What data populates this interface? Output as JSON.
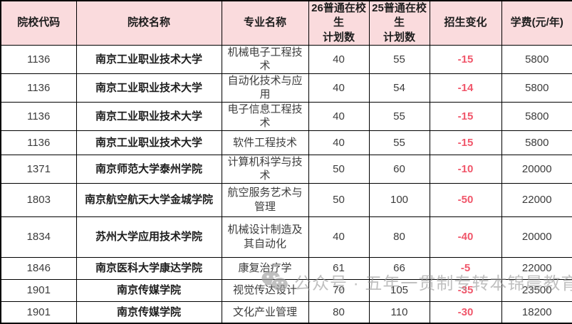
{
  "chart_data": {
    "type": "table",
    "columns": [
      "院校代码",
      "院校名称",
      "专业名称",
      "26普通在校生\n计划数",
      "25普通在校生\n计划数",
      "招生变化",
      "学费(元/年)"
    ],
    "rows": [
      {
        "code": "1136",
        "college": "南京工业职业技术大学",
        "major": "机械电子工程技术",
        "plan26": "40",
        "plan25": "55",
        "change": "-15",
        "fee": "5800"
      },
      {
        "code": "1136",
        "college": "南京工业职业技术大学",
        "major": "自动化技术与应用",
        "plan26": "40",
        "plan25": "54",
        "change": "-14",
        "fee": "5800"
      },
      {
        "code": "1136",
        "college": "南京工业职业技术大学",
        "major": "电子信息工程技术",
        "plan26": "40",
        "plan25": "55",
        "change": "-15",
        "fee": "5800"
      },
      {
        "code": "1136",
        "college": "南京工业职业技术大学",
        "major": "软件工程技术",
        "plan26": "40",
        "plan25": "55",
        "change": "-15",
        "fee": "5800"
      },
      {
        "code": "1371",
        "college": "南京师范大学泰州学院",
        "major": "计算机科学与技术",
        "plan26": "50",
        "plan25": "60",
        "change": "-10",
        "fee": "20000"
      },
      {
        "code": "1803",
        "college": "南京航空航天大学金城学院",
        "major": "航空服务艺术与管理",
        "plan26": "50",
        "plan25": "100",
        "change": "-50",
        "fee": "22000"
      },
      {
        "code": "1834",
        "college": "苏州大学应用技术学院",
        "major": "机械设计制造及其自动化",
        "plan26": "40",
        "plan25": "80",
        "change": "-40",
        "fee": "20000"
      },
      {
        "code": "1846",
        "college": "南京医科大学康达学院",
        "major": "康复治疗学",
        "plan26": "61",
        "plan25": "66",
        "change": "-5",
        "fee": "22000"
      },
      {
        "code": "1901",
        "college": "南京传媒学院",
        "major": "视觉传达设计",
        "plan26": "70",
        "plan25": "105",
        "change": "-35",
        "fee": "23500"
      },
      {
        "code": "1901",
        "college": "南京传媒学院",
        "major": "文化产业管理",
        "plan26": "80",
        "plan25": "110",
        "change": "-30",
        "fee": "18200"
      }
    ]
  },
  "watermark": {
    "icon": "wechat-icon",
    "text": "公众号 · 五年一贯制专转本锦晨教育"
  },
  "colors": {
    "header_bg": "#fadbdd",
    "border": "#000000",
    "negative_change": "#f0566a",
    "text": "#3c3c3c",
    "watermark": "#9a9a9a"
  }
}
